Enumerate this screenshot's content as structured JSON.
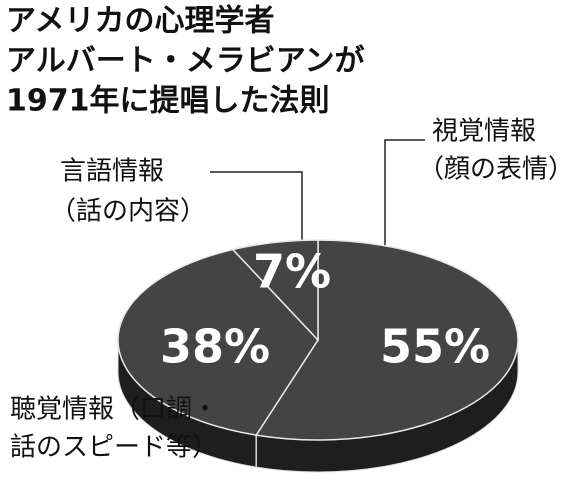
{
  "chart_data": {
    "type": "pie",
    "title": [
      "アメリカの心理学者",
      "アルバート・メラビアンが",
      "1971年に提唱した法則"
    ],
    "categories": [
      [
        "視覚情報",
        "（顔の表情）"
      ],
      [
        "聴覚情報（口調・",
        "話のスピード等）"
      ],
      [
        "言語情報",
        "（話の内容）"
      ]
    ],
    "values": [
      55,
      38,
      7
    ],
    "value_labels": [
      "55%",
      "38%",
      "7%"
    ],
    "color": "#444444"
  }
}
